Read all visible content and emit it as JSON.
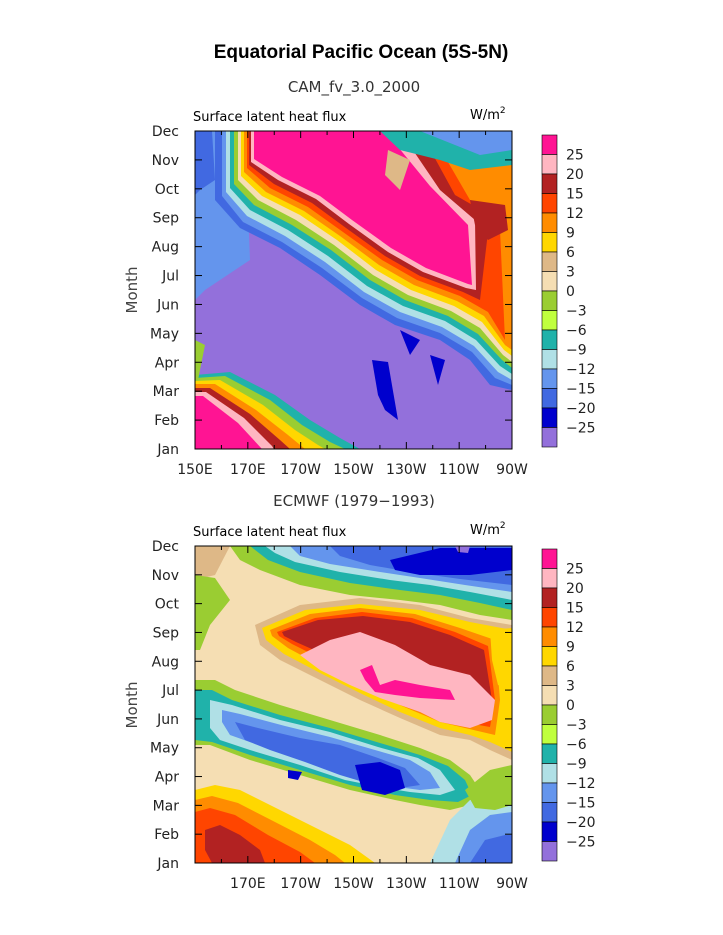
{
  "figure": {
    "title": "Equatorial Pacific Ocean (5S-5N)"
  },
  "chart_data": [
    {
      "type": "heatmap",
      "title": "CAM_fv_3.0_2000",
      "subtitle_left": "Surface latent heat flux",
      "units": "W/m2",
      "ylabel": "Month",
      "x_ticks": [
        "150E",
        "170E",
        "170W",
        "150W",
        "130W",
        "110W",
        "90W"
      ],
      "y_ticks": [
        "Jan",
        "Feb",
        "Mar",
        "Apr",
        "May",
        "Jun",
        "Jul",
        "Aug",
        "Sep",
        "Oct",
        "Nov",
        "Dec"
      ],
      "xlim": [
        "150E",
        "90W"
      ],
      "levels": [
        "25",
        "20",
        "15",
        "12",
        "9",
        "6",
        "3",
        "0",
        "−3",
        "−6",
        "−9",
        "−12",
        "−15",
        "−20",
        "−25"
      ],
      "colors": [
        "#ff1493",
        "#ffb6c1",
        "#b22222",
        "#ff4500",
        "#ff8c00",
        "#ffd700",
        "#deb887",
        "#f5deb3",
        "#9acd32",
        "#c0ff3e",
        "#20b2aa",
        "#b0e0e6",
        "#6495ed",
        "#4169e1",
        "#0000cd",
        "#9370db"
      ]
    },
    {
      "type": "heatmap",
      "title": "ECMWF (1979−1993)",
      "subtitle_left": "Surface latent heat flux",
      "units": "W/m2",
      "ylabel": "Month",
      "x_ticks": [
        "170E",
        "170W",
        "150W",
        "130W",
        "110W",
        "90W"
      ],
      "y_ticks": [
        "Jan",
        "Feb",
        "Mar",
        "Apr",
        "May",
        "Jun",
        "Jul",
        "Aug",
        "Sep",
        "Oct",
        "Nov",
        "Dec"
      ],
      "xlim": [
        "150E",
        "90W"
      ],
      "levels": [
        "25",
        "20",
        "15",
        "12",
        "9",
        "6",
        "3",
        "0",
        "−3",
        "−6",
        "−9",
        "−12",
        "−15",
        "−20",
        "−25"
      ],
      "colors": [
        "#ff1493",
        "#ffb6c1",
        "#b22222",
        "#ff4500",
        "#ff8c00",
        "#ffd700",
        "#deb887",
        "#f5deb3",
        "#9acd32",
        "#c0ff3e",
        "#20b2aa",
        "#b0e0e6",
        "#6495ed",
        "#4169e1",
        "#0000cd",
        "#9370db"
      ]
    }
  ]
}
